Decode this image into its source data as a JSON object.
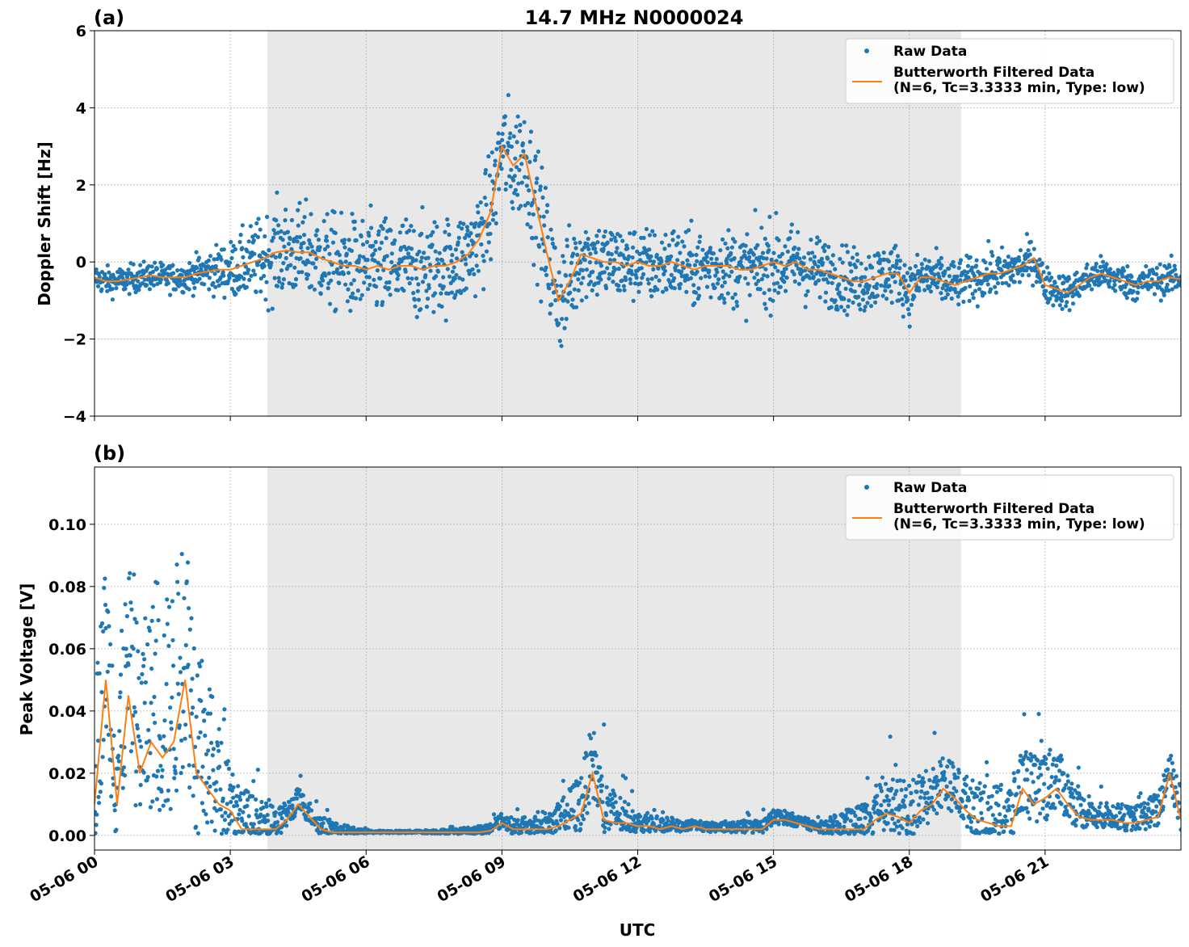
{
  "chart_data": {
    "title": "14.7 MHz N0000024",
    "xlabel": "UTC",
    "x_units": "hours since 05-06 00 UTC",
    "xlim": [
      0,
      24
    ],
    "xticks": [
      0,
      3,
      6,
      9,
      12,
      15,
      18,
      21
    ],
    "xtick_labels": [
      "05-06 00",
      "05-06 03",
      "05-06 06",
      "05-06 09",
      "05-06 12",
      "05-06 15",
      "05-06 18",
      "05-06 21"
    ],
    "shaded_interval_hours": [
      3.82,
      19.14
    ],
    "shaded_color": "#e8e8e8",
    "grid": true,
    "legend_placement": "top-right",
    "legend": [
      "Raw Data",
      "Butterworth Filtered Data",
      "(N=6, Tc=3.3333 min, Type: low)"
    ],
    "colors": {
      "raw": "#1f77b4",
      "filtered": "#ff7f0e"
    },
    "panels": [
      {
        "label": "(a)",
        "type": "scatter+line",
        "ylabel": "Doppler Shift [Hz]",
        "ylim": [
          -4,
          6
        ],
        "yticks": [
          -4,
          -2,
          0,
          2,
          4,
          6
        ],
        "ytick_labels": [
          "−4",
          "−2",
          "0",
          "2",
          "4",
          "6"
        ],
        "filtered_step_hours": 0.25,
        "filtered": [
          -0.4,
          -0.5,
          -0.5,
          -0.45,
          -0.4,
          -0.35,
          -0.4,
          -0.4,
          -0.4,
          -0.3,
          -0.25,
          -0.2,
          -0.2,
          -0.1,
          0,
          0.1,
          0.25,
          0.3,
          0.25,
          0.25,
          0.1,
          0,
          -0.1,
          -0.1,
          -0.2,
          -0.1,
          -0.2,
          -0.1,
          -0.1,
          -0.2,
          -0.1,
          -0.1,
          0,
          0.2,
          0.6,
          1.3,
          3.0,
          2.5,
          2.8,
          1.5,
          0.2,
          -1.0,
          -0.5,
          0.2,
          0.1,
          0,
          0,
          -0.1,
          0,
          -0.1,
          -0.1,
          0,
          -0.1,
          -0.2,
          -0.1,
          -0.1,
          -0.1,
          -0.2,
          -0.2,
          -0.1,
          0,
          -0.1,
          0,
          -0.2,
          -0.2,
          -0.3,
          -0.4,
          -0.5,
          -0.5,
          -0.4,
          -0.3,
          -0.3,
          -0.8,
          -0.4,
          -0.4,
          -0.5,
          -0.6,
          -0.5,
          -0.4,
          -0.3,
          -0.3,
          -0.2,
          -0.1,
          0.1,
          -0.6,
          -0.7,
          -0.8,
          -0.6,
          -0.4,
          -0.3,
          -0.4,
          -0.5,
          -0.6,
          -0.5,
          -0.5,
          -0.4,
          -0.45
        ],
        "raw_spread_hourly": [
          0.3,
          0.3,
          0.3,
          0.6,
          1.0,
          1.0,
          1.1,
          1.1,
          1.0,
          1.2,
          1.3,
          0.9,
          0.8,
          0.8,
          0.8,
          0.9,
          0.7,
          0.7,
          0.6,
          0.5,
          0.5,
          0.4,
          0.35,
          0.35,
          0.35
        ],
        "raw_floor": null
      },
      {
        "label": "(b)",
        "type": "scatter+line",
        "ylabel": "Peak Voltage [V]",
        "ylim": [
          -0.0047,
          0.1184
        ],
        "yticks": [
          0,
          0.02,
          0.04,
          0.06,
          0.08,
          0.1
        ],
        "ytick_labels": [
          "0.00",
          "0.02",
          "0.04",
          "0.06",
          "0.08",
          "0.10"
        ],
        "filtered_step_hours": 0.25,
        "filtered": [
          0.01,
          0.05,
          0.01,
          0.045,
          0.02,
          0.03,
          0.025,
          0.03,
          0.05,
          0.02,
          0.015,
          0.01,
          0.008,
          0.002,
          0.002,
          0.002,
          0.002,
          0.005,
          0.01,
          0.006,
          0.002,
          0.001,
          0.001,
          0.001,
          0.001,
          0.001,
          0.001,
          0.001,
          0.001,
          0.001,
          0.001,
          0.001,
          0.001,
          0.001,
          0.001,
          0.0015,
          0.004,
          0.002,
          0.002,
          0.002,
          0.002,
          0.003,
          0.005,
          0.007,
          0.02,
          0.005,
          0.004,
          0.004,
          0.003,
          0.003,
          0.002,
          0.003,
          0.002,
          0.003,
          0.002,
          0.002,
          0.002,
          0.002,
          0.002,
          0.002,
          0.005,
          0.005,
          0.004,
          0.003,
          0.002,
          0.002,
          0.002,
          0.002,
          0.002,
          0.005,
          0.007,
          0.006,
          0.004,
          0.008,
          0.01,
          0.015,
          0.012,
          0.008,
          0.005,
          0.004,
          0.003,
          0.003,
          0.015,
          0.01,
          0.012,
          0.015,
          0.01,
          0.006,
          0.005,
          0.005,
          0.005,
          0.004,
          0.004,
          0.005,
          0.006,
          0.02,
          0.005
        ],
        "raw_spread_hourly": [
          0.035,
          0.04,
          0.05,
          0.015,
          0.006,
          0.004,
          0.0005,
          0.0005,
          0.001,
          0.003,
          0.004,
          0.015,
          0.004,
          0.002,
          0.002,
          0.003,
          0.002,
          0.008,
          0.012,
          0.01,
          0.012,
          0.015,
          0.005,
          0.005,
          0.01
        ],
        "raw_floor": 0.0005
      }
    ]
  }
}
